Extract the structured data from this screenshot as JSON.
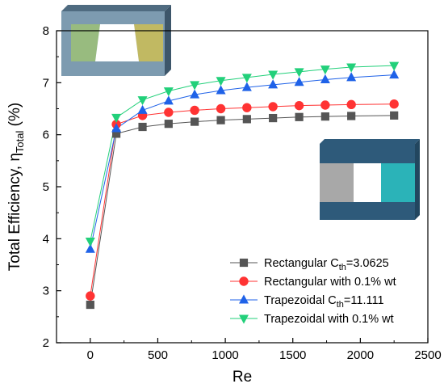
{
  "chart_data": {
    "type": "line",
    "xlabel": "Re",
    "ylabel": "Total Efficiency, η",
    "ylabel_sub": "Total",
    "ylabel_unit": " (%)",
    "xlim": [
      -250,
      2500
    ],
    "ylim": [
      2,
      8
    ],
    "xticks": [
      0,
      500,
      1000,
      1500,
      2000,
      2500
    ],
    "yticks": [
      2,
      3,
      4,
      5,
      6,
      7,
      8
    ],
    "grid": false,
    "legend_position": "bottom-right",
    "series": [
      {
        "name": "Rectangular C",
        "name_sub": "th",
        "name_suffix": "=3.0625",
        "marker": "square",
        "color": "#555555",
        "x": [
          0,
          193,
          387,
          580,
          773,
          967,
          1160,
          1353,
          1547,
          1740,
          1933,
          2250
        ],
        "y": [
          2.73,
          6.02,
          6.15,
          6.21,
          6.25,
          6.28,
          6.3,
          6.32,
          6.34,
          6.35,
          6.36,
          6.37
        ]
      },
      {
        "name": "Rectangular with 0.1% wt",
        "marker": "circle",
        "color": "#ff3333",
        "x": [
          0,
          193,
          387,
          580,
          773,
          967,
          1160,
          1353,
          1547,
          1740,
          1933,
          2250
        ],
        "y": [
          2.9,
          6.2,
          6.37,
          6.43,
          6.47,
          6.5,
          6.52,
          6.54,
          6.56,
          6.57,
          6.58,
          6.59
        ]
      },
      {
        "name": "Trapezoidal C",
        "name_sub": "th",
        "name_suffix": "=11.111",
        "marker": "triangle-up",
        "color": "#1f62e8",
        "x": [
          0,
          193,
          387,
          580,
          773,
          967,
          1160,
          1353,
          1547,
          1740,
          1933,
          2250
        ],
        "y": [
          3.8,
          6.12,
          6.47,
          6.65,
          6.77,
          6.85,
          6.91,
          6.96,
          7.01,
          7.06,
          7.1,
          7.15
        ]
      },
      {
        "name": "Trapezoidal with 0.1% wt",
        "marker": "triangle-down",
        "color": "#22d07a",
        "x": [
          0,
          193,
          387,
          580,
          773,
          967,
          1160,
          1353,
          1547,
          1740,
          1933,
          2250
        ],
        "y": [
          3.95,
          6.33,
          6.67,
          6.84,
          6.96,
          7.04,
          7.1,
          7.16,
          7.21,
          7.26,
          7.3,
          7.33
        ]
      }
    ]
  },
  "colors": {
    "insets": {
      "frame_top": "#4f6b80",
      "frame_front": "#7d9bb0",
      "frame_side": "#3d566a",
      "trap_left_fill": "#9bbf7a",
      "trap_right_fill": "#c9bd5a",
      "rect_frame": "#2e5a7a",
      "rect_left_fill": "#a8a8a8",
      "rect_right_fill": "#2bb3b8"
    }
  }
}
